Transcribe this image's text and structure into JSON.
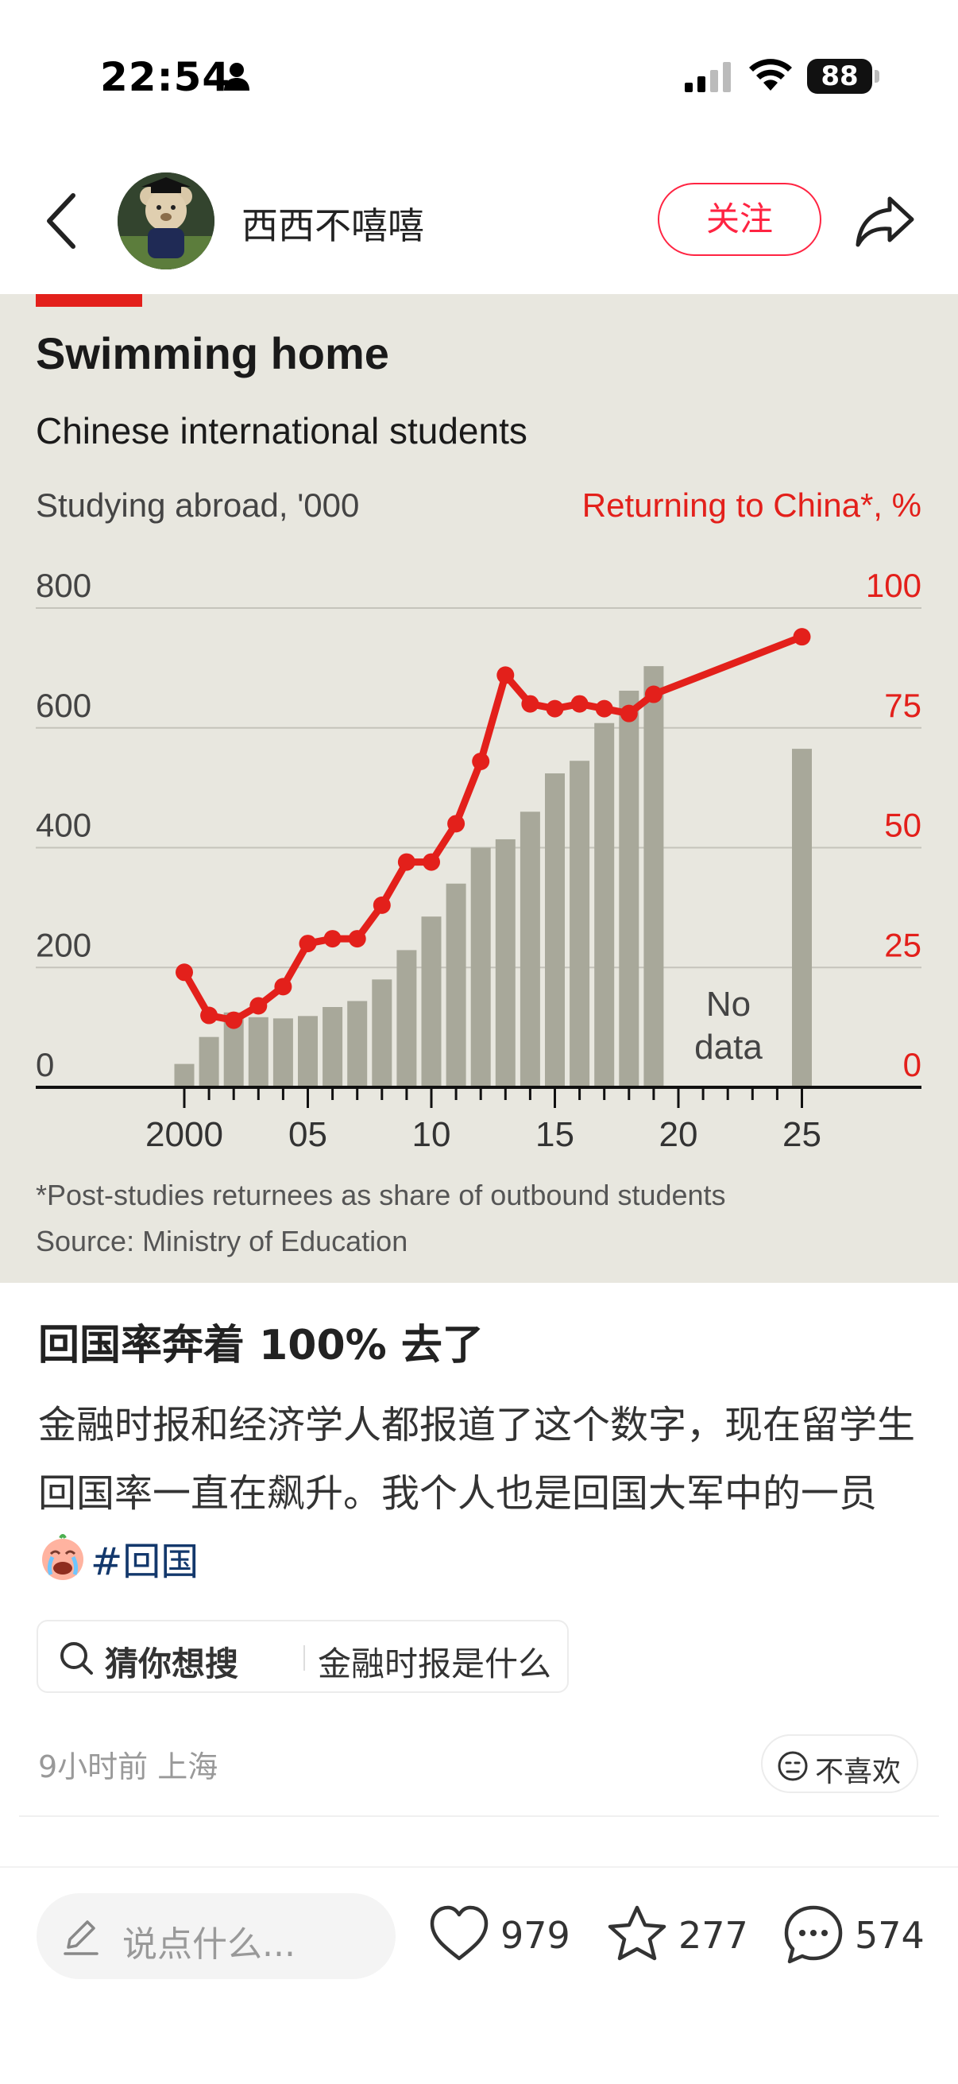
{
  "status_bar": {
    "time": "22:54",
    "battery": "88"
  },
  "header": {
    "username": "西西不嘻嘻",
    "follow_label": "关注"
  },
  "chart_data": {
    "type": "bar+line",
    "title": "Swimming home",
    "subtitle": "Chinese international students",
    "left_axis_label": "Studying abroad, '000",
    "right_axis_label": "Returning to China*, %",
    "left_ticks": [
      "800",
      "600",
      "400",
      "200",
      "0"
    ],
    "right_ticks": [
      "100",
      "75",
      "50",
      "25",
      "0"
    ],
    "x_tick_labels": [
      "2000",
      "05",
      "10",
      "15",
      "20",
      "25"
    ],
    "ylim_left": [
      0,
      800
    ],
    "ylim_right": [
      0,
      100
    ],
    "xlim": [
      1999,
      2026
    ],
    "bars": {
      "name": "Studying abroad",
      "x": [
        2000,
        2001,
        2002,
        2003,
        2004,
        2005,
        2006,
        2007,
        2008,
        2009,
        2010,
        2011,
        2012,
        2013,
        2014,
        2015,
        2016,
        2017,
        2018,
        2019,
        2025
      ],
      "values": [
        39,
        84,
        125,
        117,
        115,
        119,
        134,
        144,
        180,
        229,
        285,
        340,
        400,
        414,
        460,
        524,
        545,
        608,
        662,
        703,
        565
      ]
    },
    "line": {
      "name": "Returning to China",
      "x": [
        2000,
        2001,
        2002,
        2003,
        2004,
        2005,
        2006,
        2007,
        2008,
        2009,
        2010,
        2011,
        2012,
        2013,
        2014,
        2015,
        2016,
        2017,
        2018,
        2019,
        2025
      ],
      "values": [
        24,
        15,
        14,
        17,
        21,
        30,
        31,
        31,
        38,
        47,
        47,
        55,
        68,
        86,
        80,
        79,
        80,
        79,
        78,
        82,
        94
      ]
    },
    "annotation_line1": "No",
    "annotation_line2": "data",
    "footnote": "*Post-studies returnees as share of outbound students",
    "source": "Source: Ministry of Education",
    "colors": {
      "bars": "#a8a89a",
      "line": "#e3201b",
      "background": "#e8e7df",
      "accent": "#e3201b"
    }
  },
  "post": {
    "title": "回国率奔着 100% 去了",
    "body_1": "金融时报和经济学人都报道了这个数字，现在留学生回国率一直在飙升。我个人也是回国大军中的一员",
    "hashtag": "#回国"
  },
  "suggest": {
    "label": "猜你想搜",
    "query": "金融时报是什么"
  },
  "meta": {
    "time_location": "9小时前 上海",
    "dislike_label": "不喜欢"
  },
  "bottom_bar": {
    "comment_placeholder": "说点什么...",
    "likes": "979",
    "favorites": "277",
    "comments": "574"
  }
}
